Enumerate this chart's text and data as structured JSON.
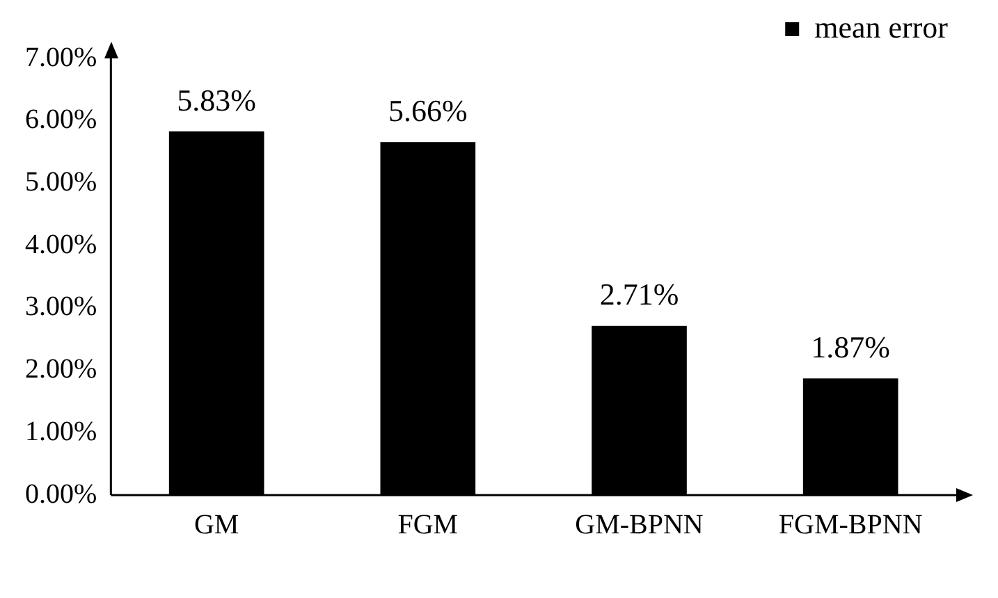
{
  "chart_data": {
    "type": "bar",
    "categories": [
      "GM",
      "FGM",
      "GM-BPNN",
      "FGM-BPNN"
    ],
    "series": [
      {
        "name": "mean error",
        "color": "#000000",
        "values": [
          5.83,
          5.66,
          2.71,
          1.87
        ],
        "value_labels": [
          "5.83%",
          "5.66%",
          "2.71%",
          "1.87%"
        ]
      }
    ],
    "ylim": [
      0,
      7
    ],
    "yticks": [
      {
        "value": 0,
        "label": "0.00%"
      },
      {
        "value": 1,
        "label": "1.00%"
      },
      {
        "value": 2,
        "label": "2.00%"
      },
      {
        "value": 3,
        "label": "3.00%"
      },
      {
        "value": 4,
        "label": "4.00%"
      },
      {
        "value": 5,
        "label": "5.00%"
      },
      {
        "value": 6,
        "label": "6.00%"
      },
      {
        "value": 7,
        "label": "7.00%"
      }
    ],
    "grid": false,
    "legend": "top right"
  }
}
